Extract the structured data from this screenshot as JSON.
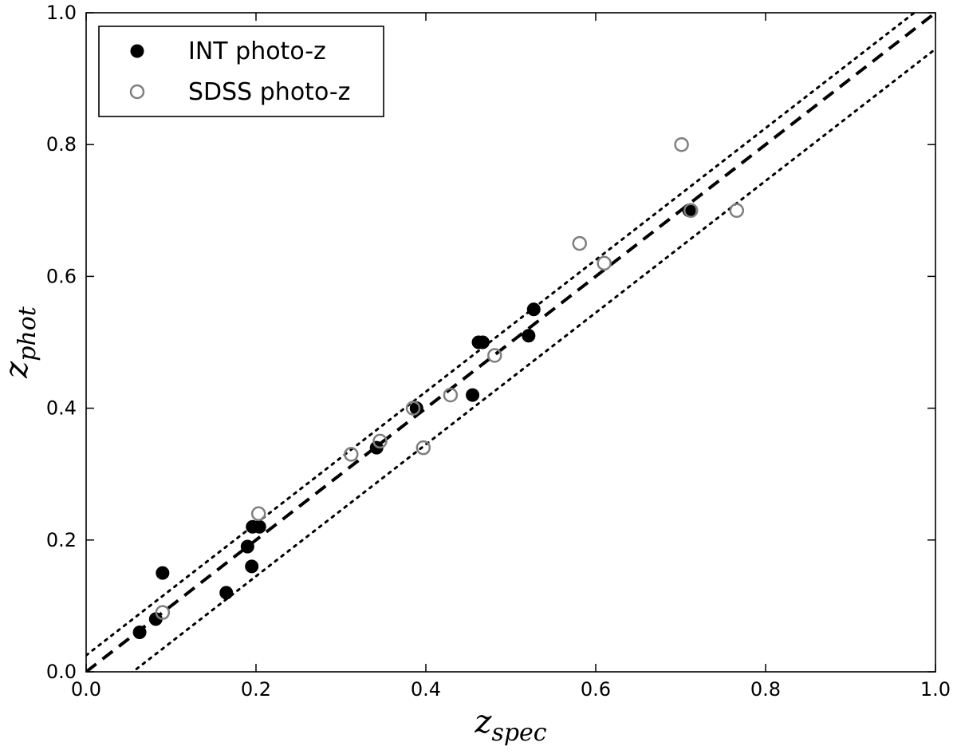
{
  "chart_data": {
    "type": "scatter",
    "title": "",
    "xlabel": {
      "main": "z",
      "sub": "spec"
    },
    "ylabel": {
      "main": "z",
      "sub": "phot"
    },
    "xlim": [
      0.0,
      1.0
    ],
    "ylim": [
      0.0,
      1.0
    ],
    "xticks": [
      "0.0",
      "0.2",
      "0.4",
      "0.6",
      "0.8",
      "1.0"
    ],
    "yticks": [
      "0.0",
      "0.2",
      "0.4",
      "0.6",
      "0.8",
      "1.0"
    ],
    "grid": false,
    "legend": {
      "placement": "top-left"
    },
    "series": [
      {
        "name": "INT photo-z",
        "marker": "filled-circle",
        "color": "#000000",
        "points": [
          [
            0.063,
            0.06
          ],
          [
            0.082,
            0.08
          ],
          [
            0.09,
            0.15
          ],
          [
            0.165,
            0.12
          ],
          [
            0.19,
            0.19
          ],
          [
            0.195,
            0.16
          ],
          [
            0.196,
            0.22
          ],
          [
            0.204,
            0.22
          ],
          [
            0.342,
            0.34
          ],
          [
            0.389,
            0.4
          ],
          [
            0.455,
            0.42
          ],
          [
            0.462,
            0.5
          ],
          [
            0.467,
            0.5
          ],
          [
            0.521,
            0.51
          ],
          [
            0.527,
            0.55
          ],
          [
            0.71,
            0.7
          ]
        ]
      },
      {
        "name": "SDSS photo-z",
        "marker": "open-circle",
        "color": "#7f7f7f",
        "points": [
          [
            0.09,
            0.09
          ],
          [
            0.203,
            0.24
          ],
          [
            0.312,
            0.33
          ],
          [
            0.346,
            0.35
          ],
          [
            0.385,
            0.4
          ],
          [
            0.397,
            0.34
          ],
          [
            0.429,
            0.42
          ],
          [
            0.481,
            0.48
          ],
          [
            0.581,
            0.65
          ],
          [
            0.61,
            0.62
          ],
          [
            0.701,
            0.8
          ],
          [
            0.712,
            0.7
          ],
          [
            0.766,
            0.7
          ]
        ]
      }
    ],
    "reference_lines": [
      {
        "style": "dashed",
        "color": "#000000",
        "intercept": 0.0,
        "slope": 1.0
      },
      {
        "style": "dotted",
        "color": "#000000",
        "intercept": 0.025,
        "slope": 1.0
      },
      {
        "style": "dotted",
        "color": "#000000",
        "intercept": -0.055,
        "slope": 1.0
      }
    ]
  }
}
